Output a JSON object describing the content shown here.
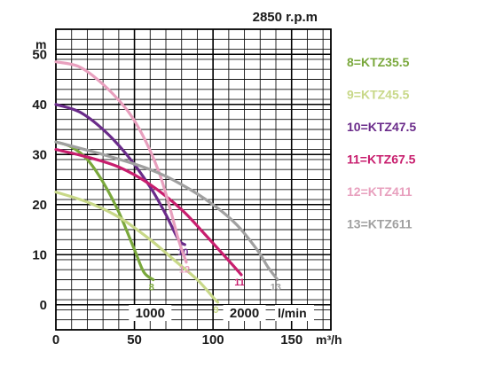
{
  "chart_data": {
    "type": "line",
    "speed_label": "2850 r.p.m",
    "y_unit_label": "m",
    "x_flow_unit_label": "l/min",
    "x_volume_unit_label": "m³/h",
    "xlim": [
      0,
      175
    ],
    "ylim": [
      -5,
      55
    ],
    "grid": true,
    "y_ticks": [
      0,
      10,
      20,
      30,
      40,
      50
    ],
    "x_ticks_m3h": [
      0,
      50,
      100,
      150
    ],
    "x_ticks_lmin": [
      1000,
      2000
    ],
    "lmin_per_m3h": 16.667,
    "legend_position": "right",
    "series": [
      {
        "name": "8=KTZ35.5",
        "end_label": "8",
        "color": "#7aa83c",
        "x": [
          0,
          10,
          20,
          30,
          40,
          50,
          56,
          62
        ],
        "y": [
          32.5,
          31.5,
          29,
          24.5,
          18.5,
          11,
          6.5,
          5
        ]
      },
      {
        "name": "9=KTZ45.5",
        "end_label": "9",
        "color": "#c8d888",
        "x": [
          0,
          20,
          40,
          60,
          75,
          90,
          100,
          103
        ],
        "y": [
          22.5,
          20.5,
          17.5,
          13,
          9,
          5,
          1.5,
          0.5
        ]
      },
      {
        "name": "10=KTZ47.5",
        "end_label": "10",
        "color": "#6a2b8a",
        "x": [
          0,
          15,
          30,
          45,
          60,
          70,
          78,
          82
        ],
        "y": [
          40,
          38.5,
          35,
          30,
          23.5,
          18,
          13,
          12
        ]
      },
      {
        "name": "11=KTZ67.5",
        "end_label": "11",
        "color": "#c81e6e",
        "x": [
          0,
          20,
          40,
          60,
          80,
          95,
          108,
          118
        ],
        "y": [
          31,
          29.5,
          27.5,
          24,
          19,
          14,
          9.5,
          6
        ]
      },
      {
        "name": "12=KTZ411",
        "end_label": "12",
        "color": "#e8a0be",
        "x": [
          0,
          15,
          30,
          45,
          55,
          65,
          72,
          78,
          83
        ],
        "y": [
          48.5,
          47.5,
          44,
          39,
          34,
          27,
          20,
          13,
          8.5
        ]
      },
      {
        "name": "13=KTZ611",
        "end_label": "13",
        "color": "#a0a0a0",
        "x": [
          0,
          30,
          60,
          80,
          100,
          115,
          128,
          135,
          141
        ],
        "y": [
          32.5,
          30,
          27,
          24,
          20,
          16,
          11,
          7.5,
          5
        ]
      }
    ]
  }
}
